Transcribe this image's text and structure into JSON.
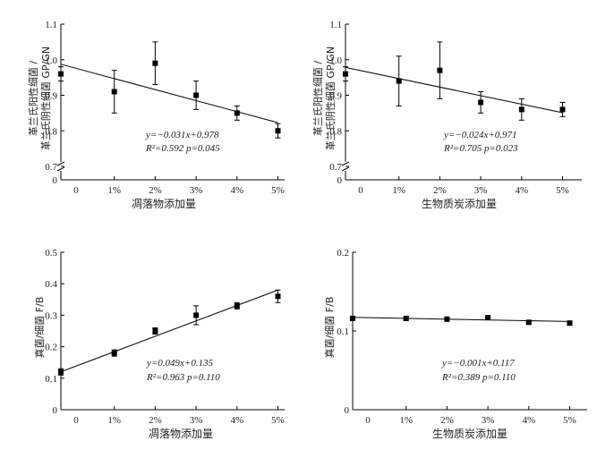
{
  "chart_data": [
    {
      "type": "scatter",
      "xlabel": "凋落物添加量",
      "ylabel_lines": [
        "革兰氏阳性细菌 /",
        "革兰氏阴性细菌 GP/GN"
      ],
      "x_ticks": [
        "0",
        "1%",
        "2%",
        "3%",
        "4%",
        "5%"
      ],
      "x": [
        0,
        1,
        2,
        3,
        4,
        5
      ],
      "y_ticks": [
        "0",
        "0.7",
        "0.8",
        "0.9",
        "1.0",
        "1.1"
      ],
      "ylim": [
        0.7,
        1.1
      ],
      "axis_break": true,
      "series": [
        {
          "values": [
            0.96,
            0.91,
            0.99,
            0.9,
            0.85,
            0.8
          ],
          "errors": [
            0.02,
            0.06,
            0.06,
            0.04,
            0.02,
            0.02
          ]
        }
      ],
      "fit": {
        "slope": -0.031,
        "intercept": 0.978
      },
      "equation": "y=−0.031x+0.978",
      "stats": "R²=0.592   p=0.045"
    },
    {
      "type": "scatter",
      "xlabel": "生物质炭添加量",
      "ylabel_lines": [
        "革兰氏阳性细菌 /",
        "革兰氏阴性细菌 GP/GN"
      ],
      "x_ticks": [
        "0",
        "1%",
        "2%",
        "3%",
        "4%",
        "5%"
      ],
      "x": [
        0,
        1,
        2,
        3,
        4,
        5
      ],
      "y_ticks": [
        "0",
        "0.7",
        "0.8",
        "0.9",
        "1.0",
        "1.1"
      ],
      "ylim": [
        0.7,
        1.1
      ],
      "axis_break": true,
      "series": [
        {
          "values": [
            0.96,
            0.94,
            0.97,
            0.88,
            0.86,
            0.86
          ],
          "errors": [
            0.02,
            0.07,
            0.08,
            0.03,
            0.03,
            0.02
          ]
        }
      ],
      "fit": {
        "slope": -0.024,
        "intercept": 0.971
      },
      "equation": "y=−0.024x+0.971",
      "stats": "R²=0.705   p=0.023"
    },
    {
      "type": "scatter",
      "xlabel": "凋落物添加量",
      "ylabel_lines": [
        "真菌/细菌 F/B"
      ],
      "x_ticks": [
        "0",
        "1%",
        "2%",
        "3%",
        "4%",
        "5%"
      ],
      "x": [
        0,
        1,
        2,
        3,
        4,
        5
      ],
      "y_ticks": [
        "0",
        "0.1",
        "0.2",
        "0.3",
        "0.4",
        "0.5"
      ],
      "ylim": [
        0,
        0.5
      ],
      "axis_break": false,
      "series": [
        {
          "values": [
            0.12,
            0.18,
            0.25,
            0.3,
            0.33,
            0.36
          ],
          "errors": [
            0.01,
            0.01,
            0.01,
            0.03,
            0.01,
            0.02
          ]
        }
      ],
      "fit": {
        "slope": 0.049,
        "intercept": 0.135
      },
      "equation": "y=0.049x+0.135",
      "stats": "R²=0.963   p=0.110"
    },
    {
      "type": "scatter",
      "xlabel": "生物质炭添加量",
      "ylabel_lines": [
        "真菌/细菌 F/B"
      ],
      "x_ticks": [
        "0",
        "1%",
        "2%",
        "3%",
        "4%",
        "5%"
      ],
      "x": [
        0,
        1,
        2,
        3,
        4,
        5
      ],
      "y_ticks": [
        "0",
        "0.1",
        "0.2"
      ],
      "ylim": [
        0,
        0.2
      ],
      "axis_break": false,
      "series": [
        {
          "values": [
            0.116,
            0.116,
            0.115,
            0.117,
            0.111,
            0.11
          ],
          "errors": [
            0.002,
            0.002,
            0.001,
            0.001,
            0.001,
            0.001
          ]
        }
      ],
      "fit": {
        "slope": -0.001,
        "intercept": 0.117
      },
      "equation": "y=−0.001x+0.117",
      "stats": "R²=0.389   p=0.110"
    }
  ]
}
